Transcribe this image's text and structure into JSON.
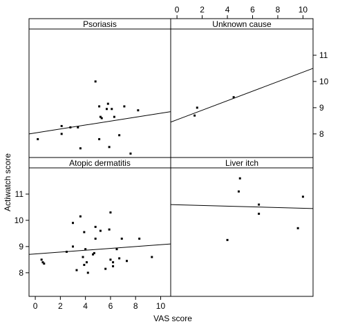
{
  "chart_data": {
    "type": "scatter",
    "xlabel": "VAS score",
    "ylabel": "Actiwatch score",
    "xlim": [
      -0.5,
      10.8
    ],
    "ylim": [
      7.1,
      12.0
    ],
    "x_ticks": [
      0,
      2,
      4,
      6,
      8,
      10
    ],
    "y_ticks": [
      8,
      9,
      10,
      11
    ],
    "colors": {
      "points": "#000000",
      "lines": "#000000",
      "frame": "#000000"
    },
    "panels": [
      {
        "name": "Psoriasis",
        "points": [
          {
            "x": 0.2,
            "y": 7.8
          },
          {
            "x": 2.1,
            "y": 8.3
          },
          {
            "x": 2.1,
            "y": 8.0
          },
          {
            "x": 2.8,
            "y": 8.25
          },
          {
            "x": 3.4,
            "y": 8.25
          },
          {
            "x": 3.6,
            "y": 7.45
          },
          {
            "x": 4.8,
            "y": 10.0
          },
          {
            "x": 5.1,
            "y": 9.05
          },
          {
            "x": 5.2,
            "y": 8.65
          },
          {
            "x": 5.3,
            "y": 8.6
          },
          {
            "x": 5.1,
            "y": 7.8
          },
          {
            "x": 5.8,
            "y": 9.15
          },
          {
            "x": 5.7,
            "y": 8.95
          },
          {
            "x": 6.1,
            "y": 8.95
          },
          {
            "x": 6.3,
            "y": 8.65
          },
          {
            "x": 5.9,
            "y": 7.5
          },
          {
            "x": 6.7,
            "y": 7.95
          },
          {
            "x": 7.1,
            "y": 9.05
          },
          {
            "x": 7.6,
            "y": 7.25
          },
          {
            "x": 8.2,
            "y": 8.9
          }
        ],
        "fit": [
          {
            "x": -0.5,
            "y": 8.0
          },
          {
            "x": 10.8,
            "y": 8.85
          }
        ]
      },
      {
        "name": "Unknown cause",
        "points": [
          {
            "x": 1.4,
            "y": 8.7
          },
          {
            "x": 1.6,
            "y": 9.0
          },
          {
            "x": 4.5,
            "y": 9.4
          }
        ],
        "fit": [
          {
            "x": -0.5,
            "y": 8.45
          },
          {
            "x": 10.8,
            "y": 10.5
          }
        ]
      },
      {
        "name": "Atopic dermatitis",
        "points": [
          {
            "x": 0.5,
            "y": 8.5
          },
          {
            "x": 0.6,
            "y": 8.4
          },
          {
            "x": 0.7,
            "y": 8.35
          },
          {
            "x": 2.5,
            "y": 8.8
          },
          {
            "x": 3.0,
            "y": 9.0
          },
          {
            "x": 3.0,
            "y": 9.9
          },
          {
            "x": 3.3,
            "y": 8.1
          },
          {
            "x": 3.6,
            "y": 10.15
          },
          {
            "x": 3.8,
            "y": 8.6
          },
          {
            "x": 3.9,
            "y": 8.3
          },
          {
            "x": 4.0,
            "y": 8.9
          },
          {
            "x": 3.9,
            "y": 9.55
          },
          {
            "x": 4.1,
            "y": 8.4
          },
          {
            "x": 4.2,
            "y": 8.0
          },
          {
            "x": 4.6,
            "y": 8.7
          },
          {
            "x": 4.7,
            "y": 8.75
          },
          {
            "x": 4.8,
            "y": 9.3
          },
          {
            "x": 4.8,
            "y": 9.75
          },
          {
            "x": 5.2,
            "y": 9.6
          },
          {
            "x": 5.6,
            "y": 8.15
          },
          {
            "x": 5.9,
            "y": 9.65
          },
          {
            "x": 6.0,
            "y": 8.5
          },
          {
            "x": 6.0,
            "y": 10.3
          },
          {
            "x": 6.2,
            "y": 8.4
          },
          {
            "x": 6.2,
            "y": 8.25
          },
          {
            "x": 6.5,
            "y": 8.9
          },
          {
            "x": 6.7,
            "y": 8.55
          },
          {
            "x": 6.9,
            "y": 9.3
          },
          {
            "x": 7.3,
            "y": 8.45
          },
          {
            "x": 8.3,
            "y": 9.3
          },
          {
            "x": 9.3,
            "y": 8.6
          }
        ],
        "fit": [
          {
            "x": -0.5,
            "y": 8.7
          },
          {
            "x": 10.8,
            "y": 9.1
          }
        ]
      },
      {
        "name": "Liver itch",
        "points": [
          {
            "x": 4.0,
            "y": 9.25
          },
          {
            "x": 4.9,
            "y": 11.1
          },
          {
            "x": 5.0,
            "y": 11.6
          },
          {
            "x": 6.5,
            "y": 10.6
          },
          {
            "x": 6.5,
            "y": 10.25
          },
          {
            "x": 9.6,
            "y": 9.7
          },
          {
            "x": 10.0,
            "y": 10.9
          }
        ],
        "fit": [
          {
            "x": -0.5,
            "y": 10.6
          },
          {
            "x": 10.8,
            "y": 10.45
          }
        ]
      }
    ]
  }
}
